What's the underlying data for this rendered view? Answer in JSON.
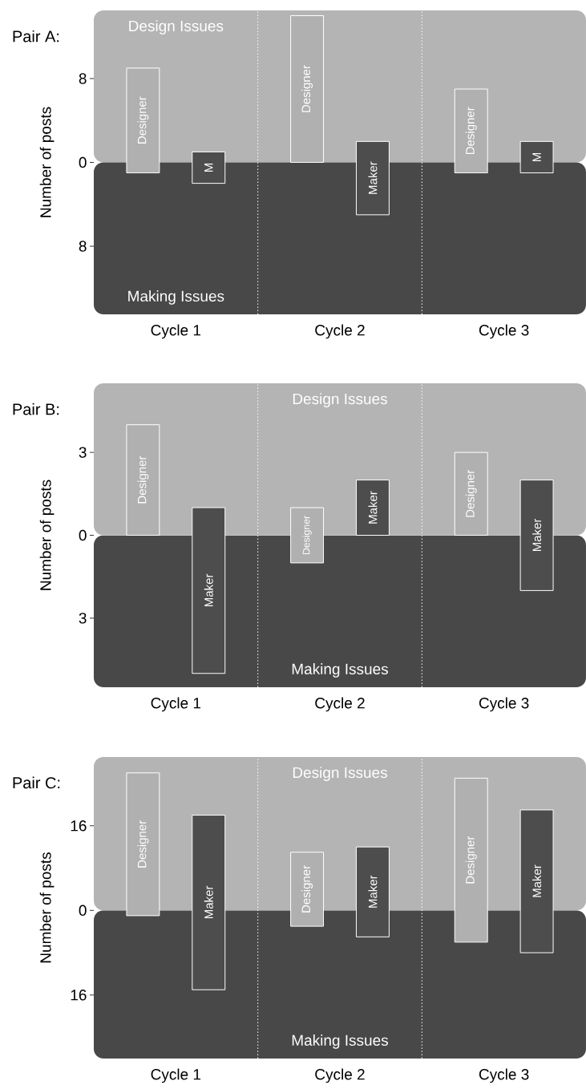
{
  "chart_data": [
    {
      "type": "bar",
      "title": "Pair A:",
      "ylabel": "Number of posts",
      "categories": [
        "Cycle 1",
        "Cycle 2",
        "Cycle 3"
      ],
      "ylim": [
        -14.5,
        14.5
      ],
      "yticks": [
        {
          "value": 8,
          "label": "8"
        },
        0,
        {
          "value": -8,
          "label": "8"
        }
      ],
      "series": [
        {
          "color": "#b0b0b0",
          "values": [
            10,
            14,
            8
          ],
          "base": [
            -1,
            0,
            -1
          ],
          "value_labels": [
            "Designer",
            "Designer",
            "Designer"
          ]
        },
        {
          "color": "#4d4d4d",
          "values": [
            3,
            7,
            3
          ],
          "base": [
            -2,
            -5,
            -1
          ],
          "value_labels": [
            "M",
            "Maker",
            "M"
          ]
        }
      ],
      "annotations": [
        "Design Issues",
        "Making Issues"
      ]
    },
    {
      "type": "bar",
      "title": "Pair B:",
      "ylabel": "Number of posts",
      "categories": [
        "Cycle 1",
        "Cycle 2",
        "Cycle 3"
      ],
      "ylim": [
        -5.5,
        5.5
      ],
      "yticks": [
        {
          "value": 3,
          "label": "3"
        },
        0,
        {
          "value": -3,
          "label": "3"
        }
      ],
      "series": [
        {
          "color": "#b0b0b0",
          "values": [
            4,
            2,
            3
          ],
          "base": [
            0,
            -1,
            0
          ],
          "value_labels": [
            "Designer",
            "Designer",
            "Designer"
          ]
        },
        {
          "color": "#4d4d4d",
          "values": [
            6,
            2,
            4
          ],
          "base": [
            -5,
            0,
            -2
          ],
          "value_labels": [
            "Maker",
            "Maker",
            "Maker"
          ]
        }
      ],
      "annotations": [
        "Design Issues",
        "Making Issues"
      ]
    },
    {
      "type": "bar",
      "title": "Pair C:",
      "ylabel": "Number of posts",
      "categories": [
        "Cycle 1",
        "Cycle 2",
        "Cycle 3"
      ],
      "ylim": [
        -28,
        29
      ],
      "yticks": [
        {
          "value": 16,
          "label": "16"
        },
        0,
        {
          "value": -16,
          "label": "16"
        }
      ],
      "series": [
        {
          "color": "#b0b0b0",
          "values": [
            27,
            14,
            31
          ],
          "base": [
            -1,
            -3,
            -6
          ],
          "value_labels": [
            "Designer",
            "Designer",
            "Designer"
          ]
        },
        {
          "color": "#4d4d4d",
          "values": [
            33,
            17,
            27
          ],
          "base": [
            -15,
            -5,
            -8
          ],
          "value_labels": [
            "Maker",
            "Maker",
            "Maker"
          ]
        }
      ],
      "annotations": [
        "Design Issues",
        "Making Issues"
      ]
    }
  ]
}
